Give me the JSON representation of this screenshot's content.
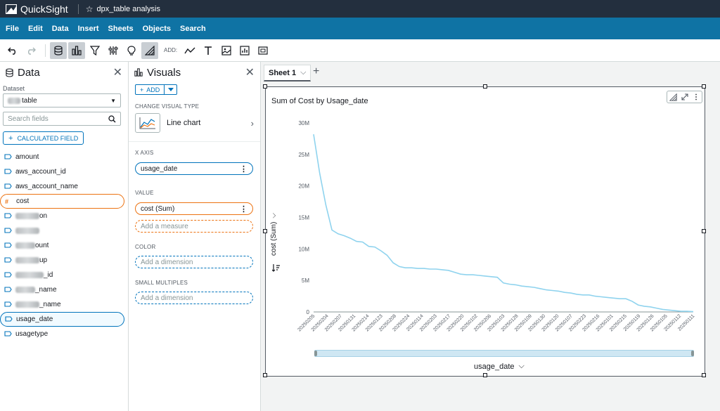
{
  "app": {
    "name": "QuickSight",
    "document_title": "dpx_table analysis"
  },
  "menu": [
    "File",
    "Edit",
    "Data",
    "Insert",
    "Sheets",
    "Objects",
    "Search"
  ],
  "toolbar": {
    "add_label": "ADD:",
    "icons": [
      "undo-icon",
      "redo-icon",
      "data-icon",
      "visuals-icon",
      "filter-icon",
      "parameters-icon",
      "insights-icon",
      "themes-icon",
      "line-icon",
      "text-icon",
      "image-icon",
      "insight-icon",
      "embed-icon"
    ]
  },
  "data_panel": {
    "title": "Data",
    "dataset_label": "Dataset",
    "dataset_value": "table",
    "search_placeholder": "Search fields",
    "calc_field_label": "CALCULATED FIELD",
    "fields": [
      {
        "label": "amount",
        "type": "dimension",
        "obscured": false
      },
      {
        "label": "aws_account_id",
        "type": "dimension",
        "obscured": false
      },
      {
        "label": "aws_account_name",
        "type": "dimension",
        "obscured": false
      },
      {
        "label": "cost",
        "type": "measure",
        "obscured": false,
        "selected": "orange"
      },
      {
        "label": "on",
        "type": "dimension",
        "obscured": true
      },
      {
        "label": "",
        "type": "dimension",
        "obscured": true
      },
      {
        "label": "ount",
        "type": "dimension",
        "obscured": true
      },
      {
        "label": "up",
        "type": "dimension",
        "obscured": true
      },
      {
        "label": "_id",
        "type": "dimension",
        "obscured": true
      },
      {
        "label": "_name",
        "type": "dimension",
        "obscured": true
      },
      {
        "label": "_name",
        "type": "dimension",
        "obscured": true
      },
      {
        "label": "usage_date",
        "type": "dimension",
        "obscured": false,
        "selected": "blue"
      },
      {
        "label": "usagetype",
        "type": "dimension",
        "obscured": false
      }
    ]
  },
  "visuals_panel": {
    "title": "Visuals",
    "add_label": "ADD",
    "change_type_label": "CHANGE VISUAL TYPE",
    "visual_type": "Line chart",
    "x_axis_label": "X AXIS",
    "x_axis_field": "usage_date",
    "value_label": "VALUE",
    "value_field": "cost (Sum)",
    "value_placeholder": "Add a measure",
    "color_label": "COLOR",
    "color_placeholder": "Add a dimension",
    "small_multiples_label": "SMALL MULTIPLES",
    "small_multiples_placeholder": "Add a dimension"
  },
  "sheet": {
    "tab_label": "Sheet 1"
  },
  "visual": {
    "title": "Sum of Cost by Usage_date",
    "y_axis_title": "cost (Sum)",
    "x_axis_title": "usage_date"
  },
  "chart_data": {
    "type": "line",
    "title": "Sum of Cost by Usage_date",
    "xlabel": "usage_date",
    "ylabel": "cost (Sum)",
    "y_ticks": [
      "0",
      "5M",
      "10M",
      "15M",
      "20M",
      "25M",
      "30M"
    ],
    "ylim": [
      0,
      30000000
    ],
    "line_color": "#8fd3ee",
    "x_tick_labels": [
      "20250205",
      "20250204",
      "20250207",
      "20250131",
      "20250214",
      "20250123",
      "20250208",
      "20250224",
      "20250114",
      "20250203",
      "20250217",
      "20250220",
      "20250102",
      "20250206",
      "20250103",
      "20250128",
      "20250109",
      "20250130",
      "20250120",
      "20250107",
      "20250223",
      "20250216",
      "20250101",
      "20250215",
      "20250119",
      "20250126",
      "20250105",
      "20250112",
      "20250111"
    ],
    "series": [
      {
        "values": [
          28200000,
          22000000,
          17000000,
          13000000,
          12400000,
          12100000,
          11700000,
          11200000,
          11100000,
          10400000,
          10300000,
          9700000,
          9000000,
          7800000,
          7200000,
          7000000,
          7000000,
          6900000,
          6900000,
          6800000,
          6800000,
          6700000,
          6600000,
          6300000,
          6000000,
          5900000,
          5900000,
          5800000,
          5700000,
          5600000,
          5500000,
          4600000,
          4400000,
          4300000,
          4100000,
          4000000,
          3900000,
          3700000,
          3500000,
          3400000,
          3300000,
          3100000,
          3000000,
          2800000,
          2700000,
          2700000,
          2500000,
          2400000,
          2300000,
          2200000,
          2100000,
          2100000,
          1700000,
          1100000,
          900000,
          800000,
          600000,
          400000,
          300000,
          200000,
          100000,
          100000,
          50000
        ]
      }
    ]
  }
}
